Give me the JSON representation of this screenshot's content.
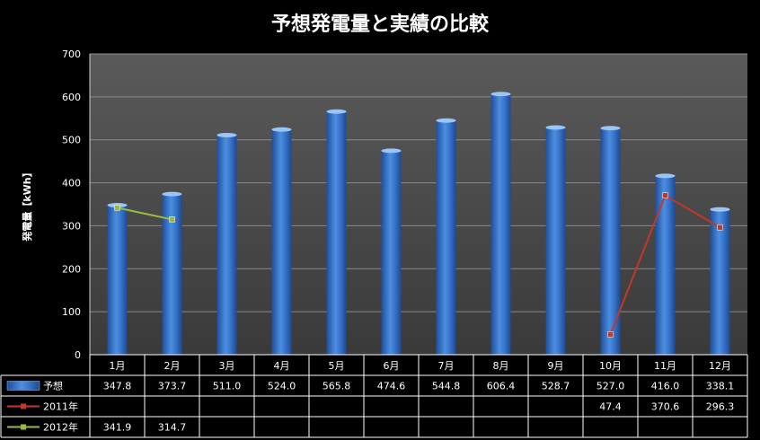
{
  "chart_data": {
    "type": "bar",
    "title": "予想発電量と実績の比較",
    "ylabel": "発電量【kWh】",
    "xlabel": "",
    "ylim": [
      0,
      700
    ],
    "yticks": [
      0,
      100,
      200,
      300,
      400,
      500,
      600,
      700
    ],
    "categories": [
      "1月",
      "2月",
      "3月",
      "4月",
      "5月",
      "6月",
      "7月",
      "8月",
      "9月",
      "10月",
      "11月",
      "12月"
    ],
    "series": [
      {
        "name": "予想",
        "type": "bar",
        "color": "#3a78d0",
        "values": [
          347.8,
          373.7,
          511.0,
          524.0,
          565.8,
          474.6,
          544.8,
          606.4,
          528.7,
          527.0,
          416.0,
          338.1
        ]
      },
      {
        "name": "2011年",
        "type": "line",
        "color": "#c0392b",
        "values": [
          null,
          null,
          null,
          null,
          null,
          null,
          null,
          null,
          null,
          47.4,
          370.6,
          296.3
        ]
      },
      {
        "name": "2012年",
        "type": "line",
        "color": "#9bbb3c",
        "values": [
          341.9,
          314.7,
          null,
          null,
          null,
          null,
          null,
          null,
          null,
          null,
          null,
          null
        ]
      }
    ],
    "table_labels": {
      "予想": [
        "347.8",
        "373.7",
        "511.0",
        "524.0",
        "565.8",
        "474.6",
        "544.8",
        "606.4",
        "528.7",
        "527.0",
        "416.0",
        "338.1"
      ],
      "2011年": [
        "",
        "",
        "",
        "",
        "",
        "",
        "",
        "",
        "",
        "47.4",
        "370.6",
        "296.3"
      ],
      "2012年": [
        "341.9",
        "314.7",
        "",
        "",
        "",
        "",
        "",
        "",
        "",
        "",
        "",
        ""
      ]
    },
    "grid": true,
    "legend": "data-table"
  }
}
